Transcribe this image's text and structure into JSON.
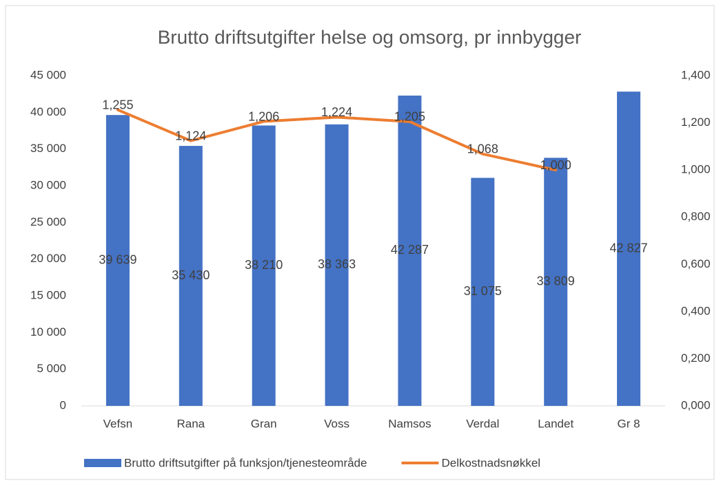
{
  "chart_data": {
    "type": "combo",
    "title": "Brutto driftsutgifter helse og omsorg, pr innbygger",
    "categories": [
      "Vefsn",
      "Rana",
      "Gran",
      "Voss",
      "Namsos",
      "Verdal",
      "Landet",
      "Gr 8"
    ],
    "series": [
      {
        "name": "Brutto driftsutgifter på funksjon/tjenesteområde",
        "type": "bar",
        "color": "#4472c4",
        "values": [
          39639,
          35430,
          38210,
          38363,
          42287,
          31075,
          33809,
          42827
        ],
        "value_labels": [
          "39 639",
          "35 430",
          "38 210",
          "38 363",
          "42 287",
          "31 075",
          "33 809",
          "42 827"
        ]
      },
      {
        "name": "Delkostnadsnøkkel",
        "type": "line",
        "axis": "y2",
        "color": "#ed7d31",
        "values": [
          1.255,
          1.124,
          1.206,
          1.224,
          1.205,
          1.068,
          1.0,
          null
        ],
        "value_labels": [
          "1,255",
          "1,124",
          "1,206",
          "1,224",
          "1,205",
          "1,068",
          "1,000",
          null
        ]
      }
    ],
    "ylim": [
      0,
      45000
    ],
    "yticks": [
      0,
      {
        "value": 5000,
        "label": "5 000"
      },
      {
        "value": 10000,
        "label": "10 000"
      },
      {
        "value": 15000,
        "label": "15 000"
      },
      {
        "value": 20000,
        "label": "20 000"
      },
      {
        "value": 25000,
        "label": "25 000"
      },
      {
        "value": 30000,
        "label": "30 000"
      },
      {
        "value": 35000,
        "label": "35 000"
      },
      {
        "value": 40000,
        "label": "40 000"
      },
      {
        "value": 45000,
        "label": "45 000"
      }
    ],
    "y2lim": [
      0,
      1.4
    ],
    "y2ticks": [
      {
        "value": 0,
        "label": "0,000"
      },
      {
        "value": 0.2,
        "label": "0,200"
      },
      {
        "value": 0.4,
        "label": "0,400"
      },
      {
        "value": 0.6,
        "label": "0,600"
      },
      {
        "value": 0.8,
        "label": "0,800"
      },
      {
        "value": 1.0,
        "label": "1,000"
      },
      {
        "value": 1.2,
        "label": "1,200"
      },
      {
        "value": 1.4,
        "label": "1,400"
      }
    ],
    "grid": false,
    "legend": "bottom"
  }
}
